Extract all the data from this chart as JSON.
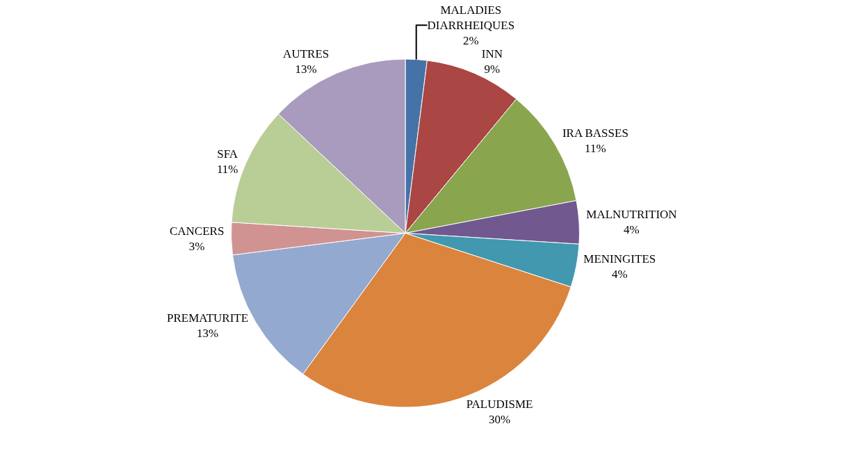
{
  "chart_data": {
    "type": "pie",
    "categories": [
      "MALADIES DIARRHEIQUES",
      "INN",
      "IRA BASSES",
      "MALNUTRITION",
      "MENINGITES",
      "PALUDISME",
      "PREMATURITE",
      "CANCERS",
      "SFA",
      "AUTRES"
    ],
    "values": [
      2,
      9,
      11,
      4,
      4,
      30,
      13,
      3,
      11,
      13
    ],
    "value_labels": [
      "2%",
      "9%",
      "11%",
      "4%",
      "4%",
      "30%",
      "13%",
      "3%",
      "11%",
      "13%"
    ],
    "colors": [
      "#4572a7",
      "#aa4643",
      "#89a54e",
      "#71588f",
      "#4198af",
      "#db843d",
      "#93a9cf",
      "#d19392",
      "#b9cd96",
      "#a99bbd"
    ],
    "legend": false
  }
}
